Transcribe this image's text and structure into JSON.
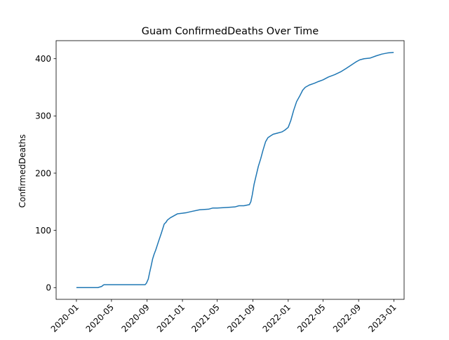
{
  "chart_data": {
    "type": "line",
    "title": "Guam  ConfirmedDeaths Over Time",
    "xlabel": "",
    "ylabel": "ConfirmedDeaths",
    "x_ticks": [
      "2020-01",
      "2020-05",
      "2020-09",
      "2021-01",
      "2021-05",
      "2021-09",
      "2022-01",
      "2022-05",
      "2022-09",
      "2023-01"
    ],
    "y_ticks": [
      0,
      100,
      200,
      300,
      400
    ],
    "xlim": [
      "2019-10-23",
      "2023-02-05"
    ],
    "ylim": [
      -20.5,
      431.5
    ],
    "grid": false,
    "color": "#1f77b4",
    "series": [
      {
        "x": [
          "2020-01-01",
          "2020-03-15",
          "2020-03-28",
          "2020-04-02",
          "2020-04-05",
          "2020-05-01",
          "2020-06-01",
          "2020-07-01",
          "2020-08-01",
          "2020-08-25",
          "2020-08-30",
          "2020-09-05",
          "2020-09-10",
          "2020-09-15",
          "2020-09-20",
          "2020-09-25",
          "2020-10-01",
          "2020-10-10",
          "2020-10-20",
          "2020-10-30",
          "2020-11-05",
          "2020-11-10",
          "2020-11-20",
          "2020-12-01",
          "2020-12-15",
          "2021-01-01",
          "2021-01-15",
          "2021-02-01",
          "2021-03-01",
          "2021-04-01",
          "2021-04-15",
          "2021-05-01",
          "2021-06-01",
          "2021-07-01",
          "2021-07-15",
          "2021-08-01",
          "2021-08-20",
          "2021-08-25",
          "2021-08-30",
          "2021-09-05",
          "2021-09-12",
          "2021-09-20",
          "2021-09-28",
          "2021-10-06",
          "2021-10-15",
          "2021-10-23",
          "2021-11-01",
          "2021-11-10",
          "2021-11-25",
          "2021-12-10",
          "2021-12-20",
          "2022-01-01",
          "2022-01-10",
          "2022-01-20",
          "2022-01-30",
          "2022-02-10",
          "2022-02-20",
          "2022-03-01",
          "2022-03-15",
          "2022-04-01",
          "2022-04-15",
          "2022-05-01",
          "2022-05-20",
          "2022-06-10",
          "2022-07-01",
          "2022-07-20",
          "2022-08-10",
          "2022-08-25",
          "2022-09-05",
          "2022-09-20",
          "2022-10-10",
          "2022-11-01",
          "2022-11-20",
          "2022-12-10",
          "2022-12-31"
        ],
        "y": [
          0,
          0,
          2,
          4,
          5,
          5,
          5,
          5,
          5,
          5,
          8,
          15,
          27,
          38,
          50,
          58,
          66,
          80,
          95,
          111,
          114,
          118,
          122,
          125,
          129,
          130,
          131,
          133,
          136,
          137,
          139,
          139,
          140,
          141,
          143,
          143,
          145,
          150,
          162,
          180,
          195,
          212,
          225,
          240,
          255,
          262,
          265,
          268,
          270,
          272,
          275,
          280,
          292,
          310,
          325,
          335,
          345,
          350,
          354,
          357,
          360,
          363,
          368,
          372,
          377,
          383,
          390,
          395,
          398,
          400,
          401,
          405,
          408,
          410,
          411
        ]
      }
    ]
  }
}
